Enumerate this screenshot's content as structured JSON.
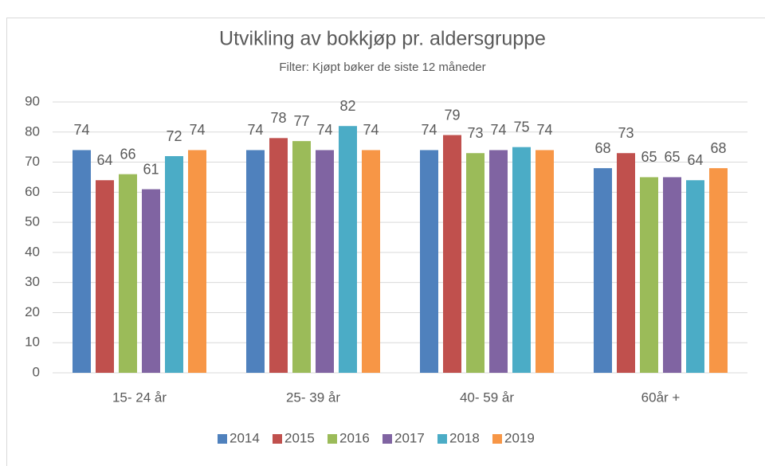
{
  "chart_data": {
    "type": "bar",
    "title": "Utvikling av bokkjøp pr. aldersgruppe",
    "subtitle": "Filter: Kjøpt bøker de siste 12 måneder",
    "categories": [
      "15- 24 år",
      "25- 39 år",
      "40- 59 år",
      "60år +"
    ],
    "series": [
      {
        "name": "2014",
        "color": "#4f81bd",
        "values": [
          74,
          74,
          74,
          68
        ]
      },
      {
        "name": "2015",
        "color": "#c0504d",
        "values": [
          64,
          78,
          79,
          73
        ]
      },
      {
        "name": "2016",
        "color": "#9bbb59",
        "values": [
          66,
          77,
          73,
          65
        ]
      },
      {
        "name": "2017",
        "color": "#8064a2",
        "values": [
          61,
          74,
          74,
          65
        ]
      },
      {
        "name": "2018",
        "color": "#4bacc6",
        "values": [
          72,
          82,
          75,
          64
        ]
      },
      {
        "name": "2019",
        "color": "#f79646",
        "values": [
          74,
          74,
          74,
          68
        ]
      }
    ],
    "ylim": [
      0,
      90
    ],
    "yticks": [
      0,
      10,
      20,
      30,
      40,
      50,
      60,
      70,
      80,
      90
    ],
    "grid": true,
    "legend": "bottom"
  }
}
